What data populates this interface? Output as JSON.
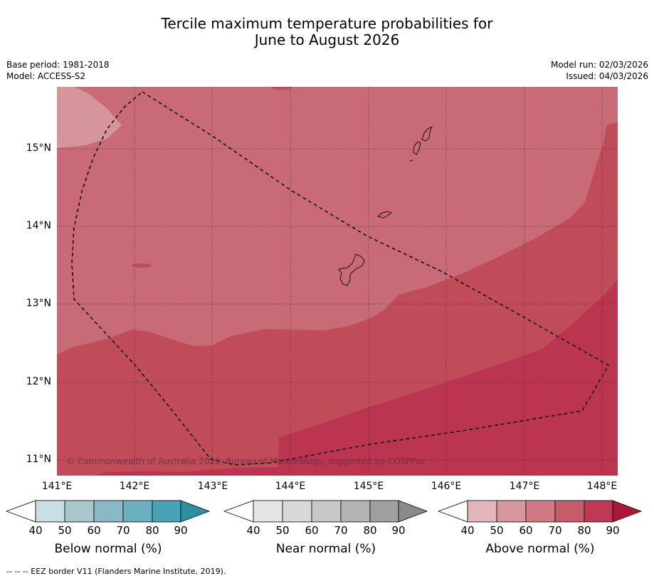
{
  "title_line1": "Tercile maximum temperature probabilities for",
  "title_line2": "June to August 2026",
  "meta": {
    "base_period": "Base period: 1981-2018",
    "model": "Model: ACCESS-S2",
    "model_run": "Model run: 02/03/2026",
    "issued": "Issued: 04/03/2026"
  },
  "map": {
    "lon_labels": [
      "141°E",
      "142°E",
      "143°E",
      "144°E",
      "145°E",
      "146°E",
      "147°E",
      "148°E"
    ],
    "lat_labels": [
      "15°N",
      "14°N",
      "13°N",
      "12°N",
      "11°N"
    ],
    "copyright": "© Commonwealth of Australia 2026, Bureau of Meteorology, supported by COSPPac"
  },
  "colorbars": [
    {
      "title": "Below normal (%)",
      "ticks": [
        "40",
        "50",
        "60",
        "70",
        "80",
        "90"
      ],
      "colors": [
        "#ffffff",
        "#c6e0e6",
        "#a8c7cc",
        "#8ab8c4",
        "#6bb0c0",
        "#47a3b5",
        "#2e8fa3"
      ]
    },
    {
      "title": "Near normal (%)",
      "ticks": [
        "40",
        "50",
        "60",
        "70",
        "80",
        "90"
      ],
      "colors": [
        "#ffffff",
        "#e6e6e6",
        "#d8d8d8",
        "#c8c8c8",
        "#b3b3b3",
        "#a0a0a0",
        "#8a8a8a"
      ]
    },
    {
      "title": "Above normal (%)",
      "ticks": [
        "40",
        "50",
        "60",
        "70",
        "80",
        "90"
      ],
      "colors": [
        "#ffffff",
        "#e3b6bc",
        "#d8969e",
        "#cf7a84",
        "#c65c6a",
        "#bd3a52",
        "#a81838"
      ]
    }
  ],
  "footnote": "--  --  -- EEZ border V11 (Flanders Marine Institute, 2019)."
}
